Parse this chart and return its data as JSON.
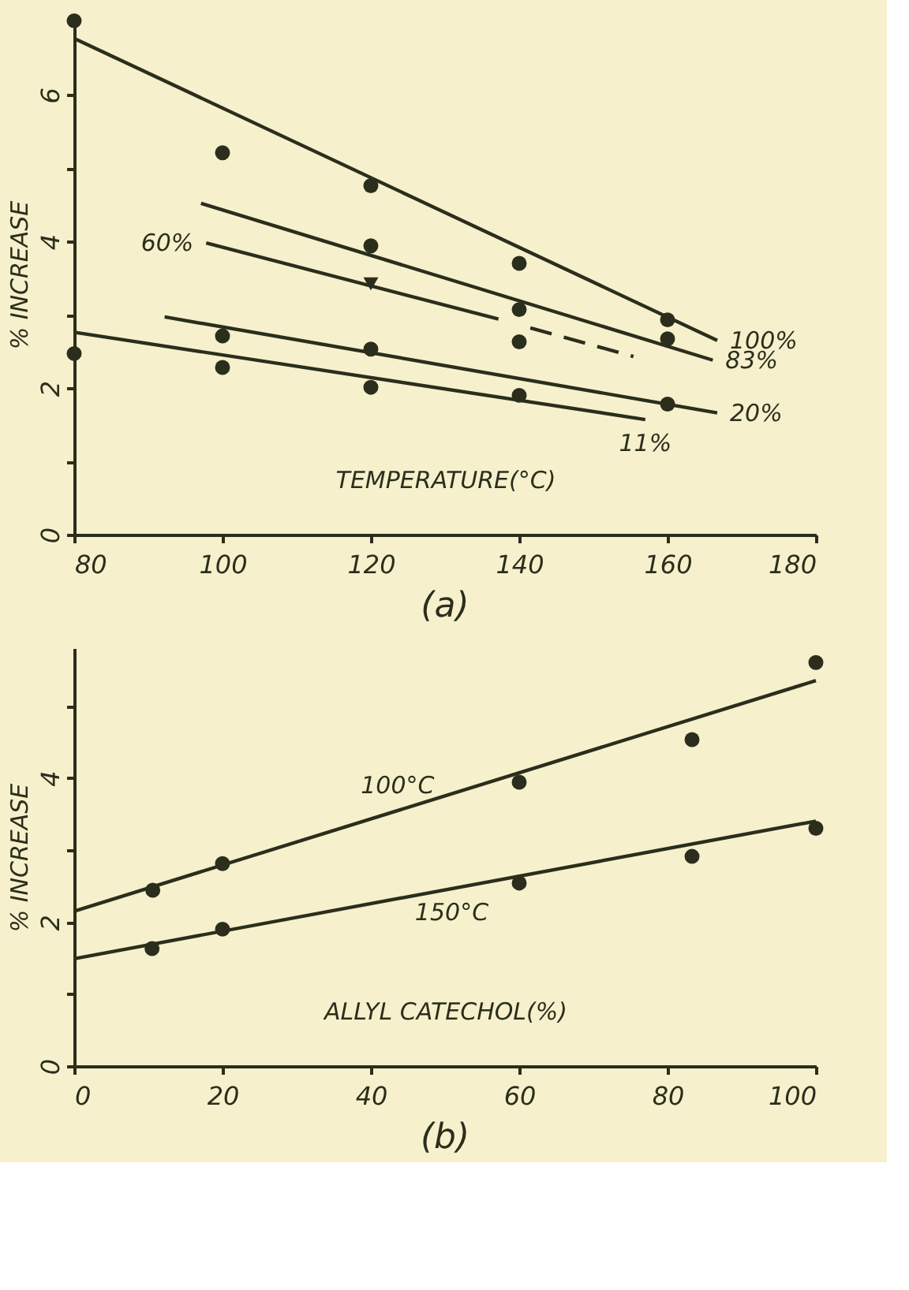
{
  "chart_data": [
    {
      "type": "scatter",
      "title": "(a)",
      "xlabel": "TEMPERATURE(°C)",
      "ylabel": "% INCREASE",
      "xlim": [
        80,
        180
      ],
      "ylim": [
        0,
        7.1
      ],
      "xticks": [
        80,
        100,
        120,
        140,
        160,
        180
      ],
      "yticks": [
        0,
        {
          "value": 1,
          "label": null
        },
        2,
        {
          "value": 3,
          "label": null
        },
        4,
        {
          "value": 5,
          "label": null
        },
        6
      ],
      "grid": false,
      "marker": "circle",
      "series": [
        {
          "color": "#2b2e1c",
          "x": [
            80,
            100,
            120,
            140,
            160
          ],
          "values": [
            7.01,
            5.21,
            4.76,
            3.7,
            2.93
          ]
        },
        {
          "type": "line",
          "color": "#2b2e1c",
          "marker": "none",
          "line_style": "solid",
          "x": [
            80,
            166.7
          ],
          "values": [
            6.77,
            2.65
          ]
        },
        {
          "color": "#2b2e1c",
          "x": [
            120,
            140,
            160
          ],
          "values": [
            3.94,
            3.07,
            2.67
          ]
        },
        {
          "type": "line",
          "color": "#2b2e1c",
          "marker": "none",
          "line_style": "solid",
          "x": [
            97.1,
            166.1
          ],
          "values": [
            4.52,
            2.38
          ]
        },
        {
          "color": "#2b2e1c",
          "marker": "triangle",
          "x": [
            120
          ],
          "values": [
            3.42
          ]
        },
        {
          "type": "line",
          "color": "#2b2e1c",
          "marker": "none",
          "line_style": "solid",
          "x": [
            97.8,
            137.2
          ],
          "values": [
            3.98,
            2.94
          ]
        },
        {
          "type": "line",
          "color": "#2b2e1c",
          "marker": "none",
          "line_style": "dashed",
          "x": [
            141.5,
            155.4
          ],
          "values": [
            2.82,
            2.43
          ]
        },
        {
          "color": "#2b2e1c",
          "x": [
            100,
            120,
            140,
            160
          ],
          "values": [
            2.71,
            2.53,
            2.63,
            1.78
          ]
        },
        {
          "type": "line",
          "color": "#2b2e1c",
          "marker": "none",
          "line_style": "solid",
          "x": [
            92.2,
            166.7
          ],
          "values": [
            2.97,
            1.66
          ]
        },
        {
          "color": "#2b2e1c",
          "x": [
            80,
            100,
            120,
            140
          ],
          "values": [
            2.47,
            2.28,
            2.01,
            1.9
          ]
        },
        {
          "type": "line",
          "color": "#2b2e1c",
          "marker": "none",
          "line_style": "solid",
          "x": [
            80,
            157
          ],
          "values": [
            2.76,
            1.57
          ]
        }
      ],
      "annotations": [
        {
          "text": "100%",
          "x": 166.7,
          "y": 2.65
        },
        {
          "text": "83%",
          "x": 166.1,
          "y": 2.38
        },
        {
          "text": "60%",
          "x": 97.8,
          "y": 3.98
        },
        {
          "text": "20%",
          "x": 166.7,
          "y": 1.66
        },
        {
          "text": "11%",
          "x": 157,
          "y": 1.57
        }
      ]
    },
    {
      "type": "scatter",
      "title": "(b)",
      "xlabel": "ALLYL CATECHOL(%)",
      "ylabel": "% INCREASE",
      "xlim": [
        0,
        100
      ],
      "ylim": [
        0,
        5.8
      ],
      "xticks": [
        0,
        20,
        40,
        60,
        80,
        100
      ],
      "yticks": [
        0,
        {
          "value": 1,
          "label": null
        },
        2,
        {
          "value": 3,
          "label": null
        },
        4,
        {
          "value": 5,
          "label": null
        }
      ],
      "grid": false,
      "marker": "circle",
      "series": [
        {
          "color": "#2b2e1c",
          "x": [
            10.6,
            20,
            60,
            83.3,
            100
          ],
          "values": [
            2.44,
            2.81,
            3.94,
            4.53,
            5.6
          ]
        },
        {
          "type": "line",
          "color": "#2b2e1c",
          "marker": "none",
          "line_style": "solid",
          "x": [
            0,
            100
          ],
          "values": [
            2.15,
            5.35
          ]
        },
        {
          "color": "#2b2e1c",
          "x": [
            10.5,
            20,
            60,
            83.3,
            100
          ],
          "values": [
            1.63,
            1.9,
            2.54,
            2.91,
            3.3
          ]
        },
        {
          "type": "line",
          "color": "#2b2e1c",
          "marker": "none",
          "line_style": "solid",
          "x": [
            0,
            100
          ],
          "values": [
            1.49,
            3.4
          ]
        }
      ],
      "annotations": [
        {
          "text": "100°C",
          "x": 43.6,
          "y": 3.55
        },
        {
          "text": "150°C",
          "x": 50.9,
          "y": 2.46
        }
      ]
    }
  ]
}
